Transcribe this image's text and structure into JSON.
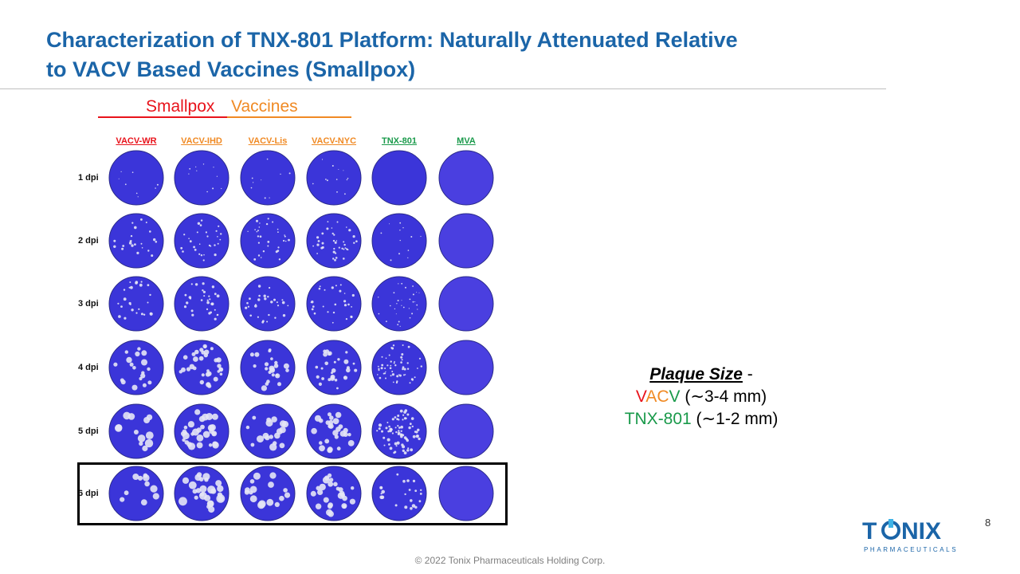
{
  "slide": {
    "title_line1": "Characterization of TNX-801 Platform: Naturally Attenuated Relative",
    "title_line2": "to VACV Based Vaccines (Smallpox)",
    "footer": "© 2022 Tonix Pharmaceuticals Holding Corp.",
    "page_number": "8"
  },
  "vaccine_heading": {
    "word1": "Smallpox",
    "word2": "Vaccines"
  },
  "figure": {
    "columns": [
      {
        "label": "VACV-WR",
        "color": "#e8131b"
      },
      {
        "label": "VACV-IHD",
        "color": "#f08a24"
      },
      {
        "label": "VACV-Lis",
        "color": "#f08a24"
      },
      {
        "label": "VACV-NYC",
        "color": "#f08a24"
      },
      {
        "label": "TNX-801",
        "color": "#1a9a4b"
      },
      {
        "label": "MVA",
        "color": "#1a9a4b"
      }
    ],
    "rows": [
      "1 dpi",
      "2 dpi",
      "3 dpi",
      "4 dpi",
      "5 dpi",
      "6 dpi"
    ],
    "highlighted_row": "6 dpi",
    "plate_color": "#3b35d9"
  },
  "plaque_size": {
    "heading": "Plaque Size",
    "dash": " -",
    "vacv_v1": "V",
    "vacv_a": "A",
    "vacv_c": "C",
    "vacv_v2": "V",
    "vacv_size": " (∼3-4 mm)",
    "tnx_name": "TNX-801",
    "tnx_size": " (∼1-2 mm)"
  },
  "logo": {
    "brand_part1": "T",
    "brand_part2": "NIX",
    "tagline": "PHARMACEUTICALS",
    "color": "#1b65a8",
    "accent": "#3fb3e6"
  }
}
